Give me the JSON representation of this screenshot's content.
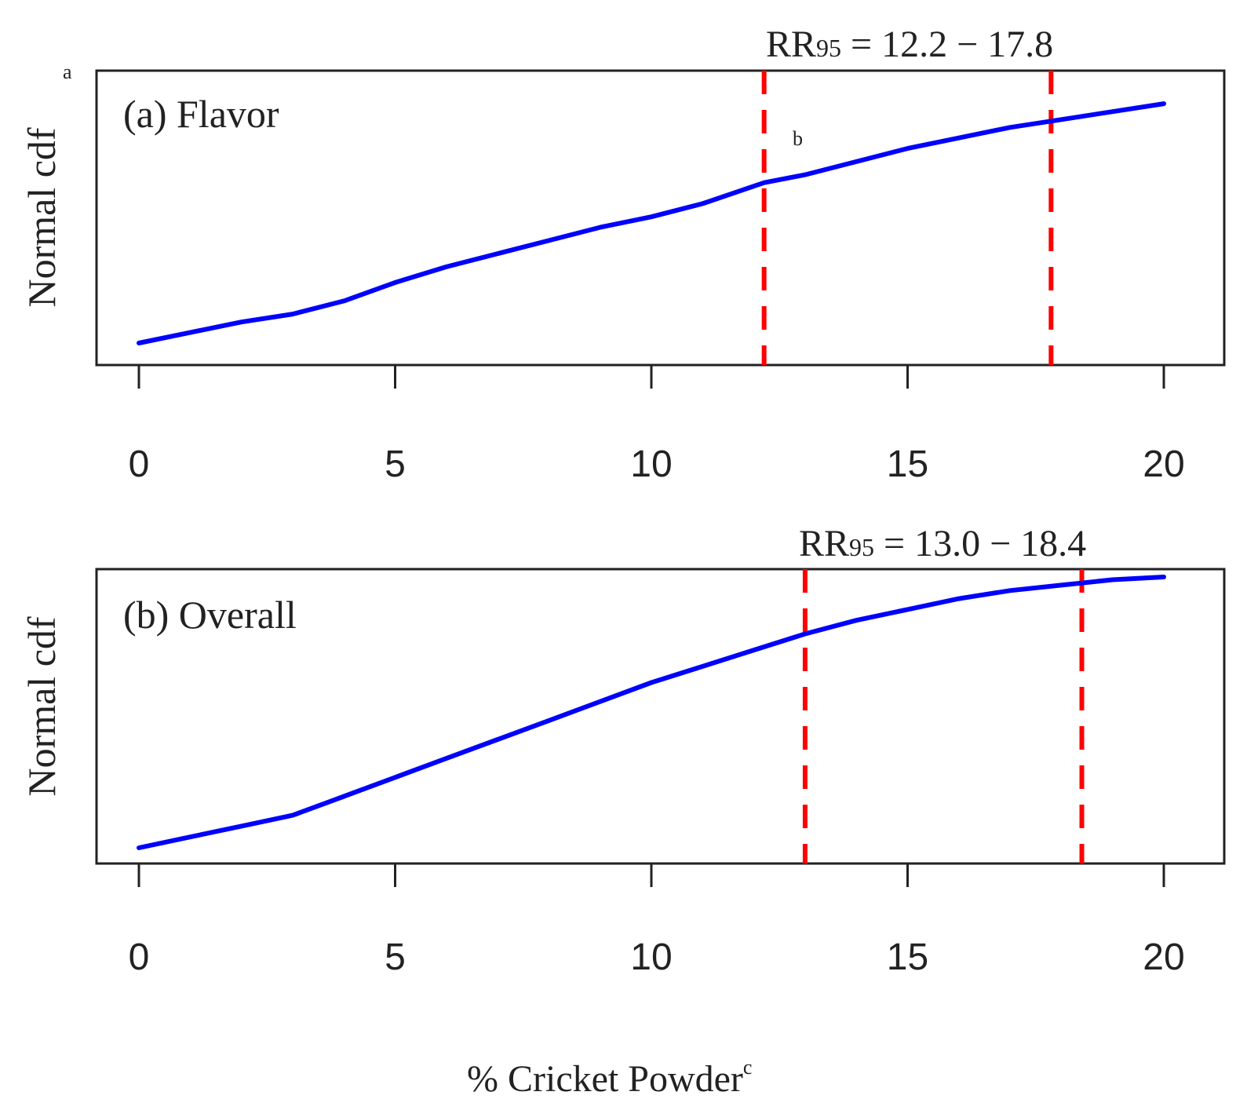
{
  "chart_data": [
    {
      "type": "line",
      "panel_label": "(a) Flavor",
      "ylabel": "Normal cdf",
      "ylabel_marker": "a",
      "point_marker": "b",
      "xlim": [
        0,
        20
      ],
      "ylim": [
        0,
        1
      ],
      "x_ticks": [
        "0",
        "5",
        "10",
        "15",
        "20"
      ],
      "grid": false,
      "rr_label": {
        "prefix": "RR",
        "subscript": "95",
        "text": " = 12.2 − 17.8"
      },
      "reference_lines": [
        12.2,
        17.8
      ],
      "series": [
        {
          "color": "#0000ff",
          "x": [
            0,
            1,
            2,
            3,
            4,
            5,
            6,
            7,
            8,
            9,
            10,
            11,
            12.2,
            13,
            14,
            15,
            16,
            17,
            18,
            19,
            20
          ],
          "y": [
            0.0,
            0.04,
            0.08,
            0.11,
            0.16,
            0.23,
            0.29,
            0.34,
            0.39,
            0.44,
            0.48,
            0.53,
            0.61,
            0.64,
            0.69,
            0.74,
            0.78,
            0.82,
            0.85,
            0.88,
            0.91
          ]
        }
      ],
      "reference_line_color": "#ff0000"
    },
    {
      "type": "line",
      "panel_label": "(b) Overall",
      "ylabel": "Normal cdf",
      "xlim": [
        0,
        20
      ],
      "ylim": [
        0,
        1
      ],
      "x_ticks": [
        "0",
        "5",
        "10",
        "15",
        "20"
      ],
      "grid": false,
      "rr_label": {
        "prefix": "RR",
        "subscript": "95",
        "text": " = 13.0 − 18.4"
      },
      "reference_lines": [
        13.0,
        18.4
      ],
      "series": [
        {
          "color": "#0000ff",
          "x": [
            0,
            1,
            2,
            3,
            4,
            5,
            6,
            7,
            8,
            9,
            10,
            11,
            12,
            13,
            14,
            15,
            16,
            17,
            18,
            19,
            20
          ],
          "y": [
            0.0,
            0.04,
            0.08,
            0.12,
            0.19,
            0.26,
            0.33,
            0.4,
            0.47,
            0.54,
            0.61,
            0.67,
            0.73,
            0.79,
            0.84,
            0.88,
            0.92,
            0.95,
            0.97,
            0.99,
            1.0
          ]
        }
      ],
      "reference_line_color": "#ff0000"
    }
  ],
  "xlabel": "% Cricket Powder",
  "xlabel_marker": "c"
}
